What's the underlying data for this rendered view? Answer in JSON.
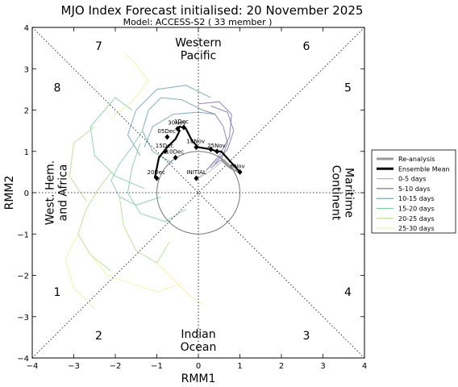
{
  "chart_data": {
    "type": "line",
    "title": "MJO Index Forecast initialised:  20  November 2025",
    "subtitle": "Model: ACCESS-S2 ( 33 member )",
    "xlabel": "RMM1",
    "ylabel": "RMM2",
    "xlim": [
      -4,
      4
    ],
    "ylim": [
      -4,
      4
    ],
    "xticks": [
      "−4",
      "−3",
      "−2",
      "−1",
      "0",
      "1",
      "2",
      "3",
      "4"
    ],
    "yticks": [
      "−4",
      "−3",
      "−2",
      "−1",
      "0",
      "1",
      "2",
      "3",
      "4"
    ],
    "phases": [
      {
        "label": "1",
        "x": -3.4,
        "y": -2.4
      },
      {
        "label": "2",
        "x": -2.4,
        "y": -3.45
      },
      {
        "label": "3",
        "x": 2.6,
        "y": -3.45
      },
      {
        "label": "4",
        "x": 3.6,
        "y": -2.4
      },
      {
        "label": "5",
        "x": 3.6,
        "y": 2.55
      },
      {
        "label": "6",
        "x": 2.6,
        "y": 3.55
      },
      {
        "label": "7",
        "x": -2.4,
        "y": 3.55
      },
      {
        "label": "8",
        "x": -3.4,
        "y": 2.55
      }
    ],
    "regions": [
      {
        "lines": [
          "Western",
          "Pacific"
        ],
        "x": 0.0,
        "y": 3.5,
        "rotate": 0
      },
      {
        "lines": [
          "Indian",
          "Ocean"
        ],
        "x": 0.0,
        "y": -3.55,
        "rotate": 0
      },
      {
        "lines": [
          "West. Hem.",
          "and Africa"
        ],
        "x": -3.45,
        "y": 0.0,
        "rotate": -90
      },
      {
        "lines": [
          "Maritime",
          "Continent"
        ],
        "x": 3.5,
        "y": 0.0,
        "rotate": 90
      }
    ],
    "legend": {
      "placement": "outside-right",
      "entries": [
        {
          "label": "Re-analysis",
          "color": "#999999",
          "width": "thick"
        },
        {
          "label": "Ensemble Mean",
          "color": "#000000",
          "width": "thick"
        },
        {
          "label": "0-5 days",
          "color": "#bbbbbb",
          "width": "thin"
        },
        {
          "label": "5-10 days",
          "color": "#7c76a8",
          "width": "thin"
        },
        {
          "label": "10-15 days",
          "color": "#6b9fb0",
          "width": "thin"
        },
        {
          "label": "15-20 days",
          "color": "#7fcaa6",
          "width": "thin"
        },
        {
          "label": "20-25 days",
          "color": "#b6dc8a",
          "width": "thin"
        },
        {
          "label": "25-30 days",
          "color": "#f4ef9a",
          "width": "thin"
        }
      ]
    },
    "reanalysis": {
      "x": [
        0.55,
        0.7,
        0.85,
        1.0
      ],
      "y": [
        0.8,
        0.65,
        0.55,
        0.5
      ]
    },
    "ensemble_mean": {
      "x": [
        1.0,
        0.55,
        0.45,
        0.3,
        0.0,
        -0.15,
        -0.3,
        -0.45,
        -0.5,
        -0.45,
        -0.55,
        -0.75,
        -0.95,
        -1.0,
        -1.05
      ],
      "y": [
        0.5,
        1.0,
        1.0,
        1.05,
        1.1,
        1.25,
        1.55,
        1.6,
        1.55,
        1.5,
        1.3,
        1.1,
        0.85,
        0.6,
        0.35
      ],
      "markers": [
        {
          "label": "6Nov",
          "x": 1.0,
          "y": 0.5
        },
        {
          "label": "25Nov",
          "x": 0.45,
          "y": 1.0
        },
        {
          "label": "",
          "x": 0.3,
          "y": 1.05
        },
        {
          "label": "18Nov",
          "x": -0.05,
          "y": 1.1
        },
        {
          "label": "30Nov",
          "x": -0.5,
          "y": 1.55
        },
        {
          "label": "1Dec",
          "x": -0.35,
          "y": 1.58
        },
        {
          "label": "05Dec",
          "x": -0.75,
          "y": 1.35
        },
        {
          "label": "15Dec",
          "x": -0.8,
          "y": 1.0
        },
        {
          "label": "10Dec",
          "x": -0.55,
          "y": 0.85
        },
        {
          "label": "20Dec",
          "x": -1.0,
          "y": 0.35
        },
        {
          "label": "INITIAL",
          "x": -0.05,
          "y": 0.35
        }
      ]
    },
    "ensemble_members": [
      {
        "period": "0-5 days",
        "x": [
          0.0,
          0.2,
          0.45,
          0.6
        ],
        "y": [
          0.35,
          0.55,
          0.8,
          0.95
        ]
      },
      {
        "period": "0-5 days",
        "x": [
          0.0,
          0.25,
          0.5,
          0.7
        ],
        "y": [
          0.35,
          0.5,
          0.7,
          0.85
        ]
      },
      {
        "period": "5-10 days",
        "x": [
          0.3,
          0.55,
          0.7,
          0.6,
          0.4,
          0.1
        ],
        "y": [
          0.6,
          0.8,
          1.2,
          1.6,
          1.9,
          2.0
        ]
      },
      {
        "period": "5-10 days",
        "x": [
          0.2,
          0.5,
          0.75,
          0.8,
          0.5,
          0.0
        ],
        "y": [
          0.55,
          0.9,
          1.35,
          1.9,
          2.2,
          2.15
        ]
      },
      {
        "period": "5-10 days",
        "x": [
          0.4,
          0.7,
          0.85,
          0.7,
          0.3
        ],
        "y": [
          0.7,
          1.05,
          1.5,
          1.95,
          2.1
        ]
      },
      {
        "period": "10-15 days",
        "x": [
          0.1,
          -0.4,
          -0.9,
          -1.2,
          -1.35,
          -1.1,
          -0.6
        ],
        "y": [
          2.0,
          2.25,
          2.3,
          2.0,
          1.5,
          1.0,
          0.7
        ]
      },
      {
        "period": "10-15 days",
        "x": [
          0.3,
          -0.3,
          -1.0,
          -1.5,
          -1.7,
          -1.4
        ],
        "y": [
          2.3,
          2.6,
          2.5,
          2.0,
          1.4,
          0.9
        ]
      },
      {
        "period": "10-15 days",
        "x": [
          0.4,
          0.0,
          -0.6,
          -1.1,
          -1.3
        ],
        "y": [
          1.9,
          1.95,
          1.9,
          1.6,
          1.1
        ]
      },
      {
        "period": "15-20 days",
        "x": [
          -1.35,
          -1.6,
          -1.9,
          -2.1,
          -1.9,
          -1.5,
          -0.9
        ],
        "y": [
          1.5,
          1.1,
          0.7,
          0.3,
          -0.1,
          -0.3,
          -0.1
        ]
      },
      {
        "period": "15-20 days",
        "x": [
          -1.6,
          -2.0,
          -2.6,
          -2.5,
          -2.0,
          -1.3
        ],
        "y": [
          2.0,
          2.3,
          1.6,
          0.9,
          0.4,
          0.1
        ]
      },
      {
        "period": "15-20 days",
        "x": [
          -1.4,
          -1.6,
          -1.7,
          -1.4,
          -0.8,
          -0.3
        ],
        "y": [
          1.2,
          0.6,
          0.0,
          -0.5,
          -0.7,
          -0.4
        ]
      },
      {
        "period": "20-25 days",
        "x": [
          -2.1,
          -2.4,
          -2.7,
          -2.9,
          -2.6,
          -2.1
        ],
        "y": [
          0.5,
          0.1,
          -0.4,
          -1.0,
          -1.5,
          -1.9
        ]
      },
      {
        "period": "20-25 days",
        "x": [
          -1.9,
          -1.8,
          -1.5,
          -1.0,
          -0.7
        ],
        "y": [
          -0.1,
          -0.8,
          -1.4,
          -1.7,
          -1.2
        ]
      },
      {
        "period": "20-25 days",
        "x": [
          -2.5,
          -3.0,
          -3.1,
          -2.7
        ],
        "y": [
          1.6,
          1.2,
          0.4,
          -0.2
        ]
      },
      {
        "period": "25-30 days",
        "x": [
          -2.6,
          -2.2,
          -1.6,
          -1.0,
          -0.4
        ],
        "y": [
          -1.5,
          -2.0,
          -2.2,
          -2.4,
          -2.2
        ]
      },
      {
        "period": "25-30 days",
        "x": [
          -2.9,
          -3.2,
          -3.0,
          -2.5
        ],
        "y": [
          -1.0,
          -1.6,
          -2.3,
          -2.8
        ]
      },
      {
        "period": "25-30 days",
        "x": [
          -1.8,
          -1.5,
          -1.2,
          -1.6,
          -2.1
        ],
        "y": [
          3.4,
          3.1,
          2.7,
          2.2,
          1.8
        ]
      },
      {
        "period": "25-30 days",
        "x": [
          -1.0,
          -0.6,
          -0.2,
          0.1
        ],
        "y": [
          -1.7,
          -2.1,
          -2.5,
          -2.7
        ]
      }
    ],
    "unit_circle_radius": 1,
    "grid": false
  }
}
